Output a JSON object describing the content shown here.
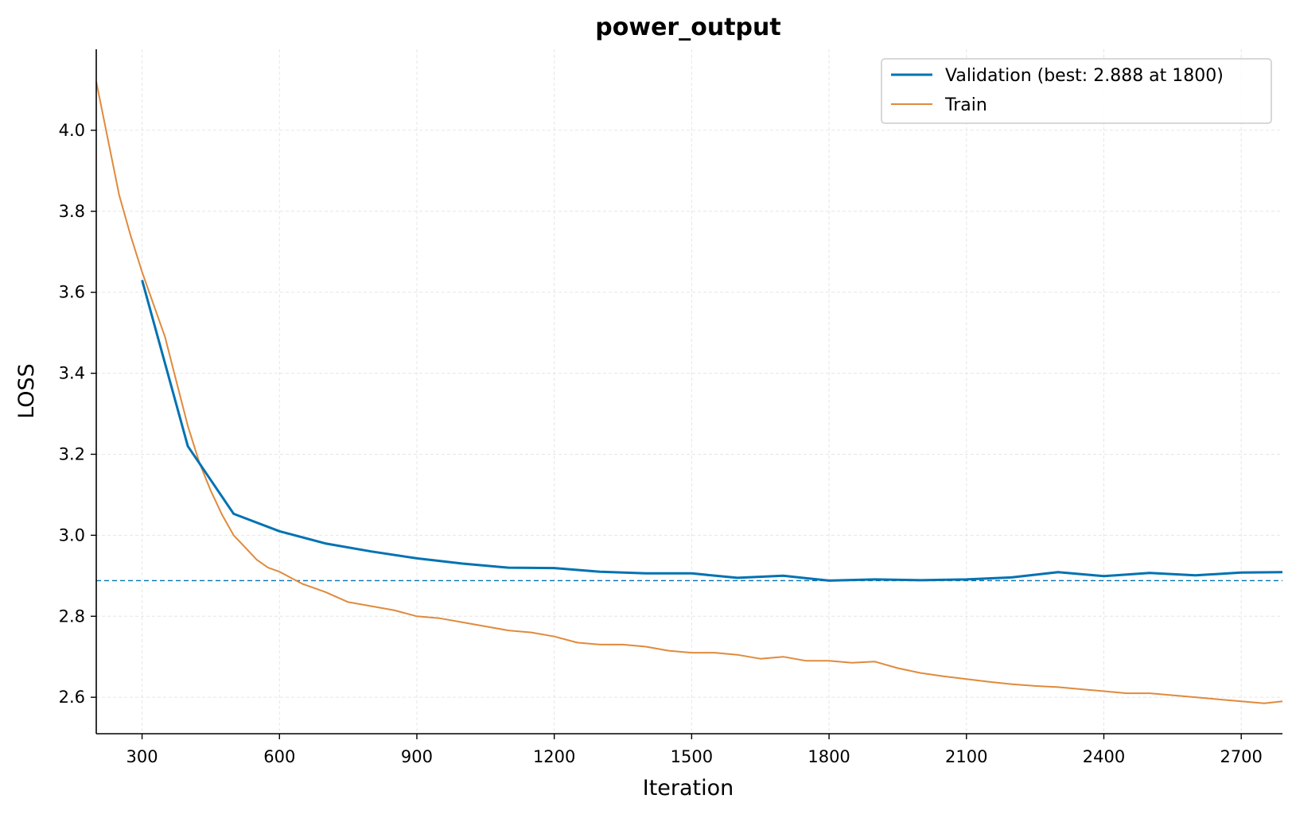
{
  "chart_data": {
    "type": "line",
    "title": "power_output",
    "xlabel": "Iteration",
    "ylabel": "LOSS",
    "xlim": [
      200,
      2790
    ],
    "ylim": [
      2.51,
      4.2
    ],
    "xticks": [
      300,
      600,
      900,
      1200,
      1500,
      1800,
      2100,
      2400,
      2700
    ],
    "yticks": [
      2.6,
      2.8,
      3.0,
      3.2,
      3.4,
      3.6,
      3.8,
      4.0
    ],
    "xtick_labels": [
      "300",
      "600",
      "900",
      "1200",
      "1500",
      "1800",
      "2100",
      "2400",
      "2700"
    ],
    "ytick_labels": [
      "2.6",
      "2.8",
      "3.0",
      "3.2",
      "3.4",
      "3.6",
      "3.8",
      "4.0"
    ],
    "grid": true,
    "legend_position": "top-right",
    "reference_line": {
      "y": 2.888,
      "style": "dashed",
      "color": "#0072b2"
    },
    "series": [
      {
        "name": "Validation (best: 2.888 at 1800)",
        "color": "#0072b2",
        "x": [
          300,
          400,
          500,
          600,
          700,
          800,
          900,
          1000,
          1100,
          1200,
          1300,
          1400,
          1500,
          1600,
          1700,
          1800,
          1900,
          2000,
          2100,
          2200,
          2300,
          2400,
          2500,
          2600,
          2700,
          2790
        ],
        "y": [
          3.63,
          3.22,
          3.053,
          3.01,
          2.98,
          2.96,
          2.943,
          2.93,
          2.92,
          2.919,
          2.91,
          2.906,
          2.906,
          2.895,
          2.9,
          2.888,
          2.891,
          2.889,
          2.891,
          2.896,
          2.909,
          2.899,
          2.907,
          2.901,
          2.908,
          2.909
        ]
      },
      {
        "name": "Train",
        "color": "#e08a3c",
        "x": [
          200,
          225,
          250,
          275,
          300,
          325,
          350,
          375,
          400,
          425,
          450,
          475,
          500,
          525,
          550,
          575,
          600,
          650,
          700,
          750,
          800,
          850,
          900,
          950,
          1000,
          1050,
          1100,
          1150,
          1200,
          1250,
          1300,
          1350,
          1400,
          1450,
          1500,
          1550,
          1600,
          1650,
          1700,
          1750,
          1800,
          1850,
          1900,
          1950,
          2000,
          2050,
          2100,
          2150,
          2200,
          2250,
          2300,
          2350,
          2400,
          2450,
          2500,
          2550,
          2600,
          2650,
          2700,
          2750,
          2790
        ],
        "y": [
          4.12,
          3.98,
          3.84,
          3.74,
          3.65,
          3.57,
          3.49,
          3.38,
          3.27,
          3.18,
          3.11,
          3.05,
          3.0,
          2.97,
          2.94,
          2.92,
          2.91,
          2.88,
          2.86,
          2.835,
          2.825,
          2.815,
          2.8,
          2.795,
          2.785,
          2.775,
          2.765,
          2.76,
          2.75,
          2.735,
          2.73,
          2.73,
          2.725,
          2.715,
          2.71,
          2.71,
          2.705,
          2.695,
          2.7,
          2.69,
          2.69,
          2.685,
          2.688,
          2.672,
          2.66,
          2.652,
          2.645,
          2.638,
          2.632,
          2.628,
          2.625,
          2.62,
          2.615,
          2.61,
          2.61,
          2.605,
          2.6,
          2.595,
          2.59,
          2.585,
          2.59
        ]
      }
    ]
  }
}
